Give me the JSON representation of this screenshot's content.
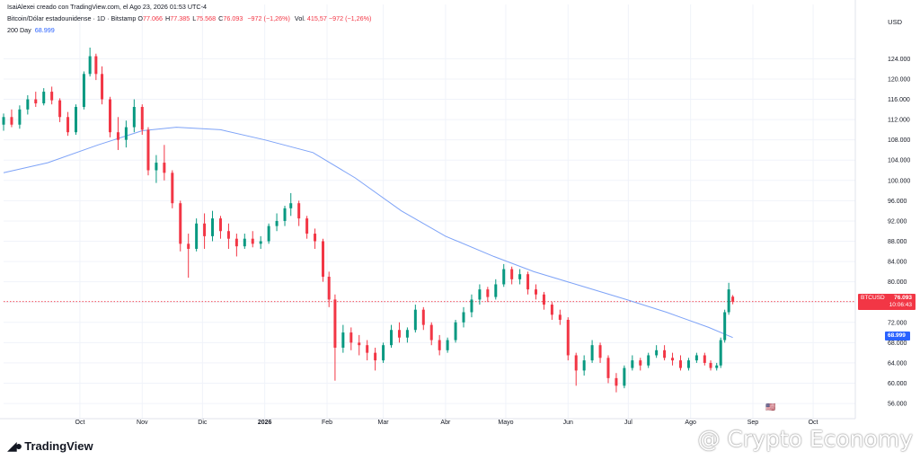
{
  "header": {
    "creator_line": "IsaiAlexei creado con TradingView.com, el Ago 23, 2026 01:53 UTC-4",
    "symbol_line": "Bitcoin/Dólar estadounidense · 1D · Bitstamp",
    "ohlc": [
      {
        "label": "O",
        "value": "77.066"
      },
      {
        "label": "H",
        "value": "77.385"
      },
      {
        "label": "L",
        "value": "75.568"
      },
      {
        "label": "C",
        "value": "76.093"
      }
    ],
    "change": "−972 (−1,26%)",
    "volume_label": "Vol.",
    "volume": "415,57 −972 (−1,26%)",
    "ma_label": "200 Day",
    "ma_value": "68.999"
  },
  "currency": "USD",
  "price_badge": {
    "symbol": "BTCUSD",
    "price": "76.093",
    "countdown": "10:06:43"
  },
  "ma_badge": "68.999",
  "branding": {
    "logo_text": "TradingView",
    "watermark": "@ Crypto Economy"
  },
  "colors": {
    "up": "#089981",
    "down": "#f23645",
    "ma": "#2962ff",
    "grid": "#f0f3fa"
  },
  "chart_data": {
    "type": "candlestick",
    "y_ticks": [
      56000,
      60000,
      64000,
      68000,
      72000,
      76000,
      80000,
      84000,
      88000,
      92000,
      96000,
      100000,
      104000,
      108000,
      112000,
      116000,
      120000,
      124000
    ],
    "y_tick_labels": [
      "56.000",
      "60.000",
      "64.000",
      "68.000",
      "72.000",
      "76.000",
      "80.000",
      "84.000",
      "88.000",
      "92.000",
      "96.000",
      "100.000",
      "104.000",
      "108.000",
      "112.000",
      "116.000",
      "120.000",
      "124.000"
    ],
    "ylim": [
      53000,
      128500
    ],
    "x_ticks": [
      {
        "label": "Oct",
        "date": "2025-10-01",
        "bold": false
      },
      {
        "label": "Nov",
        "date": "2025-11-01",
        "bold": false
      },
      {
        "label": "Dic",
        "date": "2025-12-01",
        "bold": false
      },
      {
        "label": "2026",
        "date": "2026-01-01",
        "bold": true
      },
      {
        "label": "Feb",
        "date": "2026-02-01",
        "bold": false
      },
      {
        "label": "Mar",
        "date": "2026-03-01",
        "bold": false
      },
      {
        "label": "Abr",
        "date": "2026-04-01",
        "bold": false
      },
      {
        "label": "Mayo",
        "date": "2026-05-01",
        "bold": false
      },
      {
        "label": "Jun",
        "date": "2026-06-01",
        "bold": false
      },
      {
        "label": "Jul",
        "date": "2026-07-01",
        "bold": false
      },
      {
        "label": "Ago",
        "date": "2026-08-01",
        "bold": false
      },
      {
        "label": "Sep",
        "date": "2026-09-01",
        "bold": false
      },
      {
        "label": "Oct",
        "date": "2026-10-01",
        "bold": false
      }
    ],
    "xlim": [
      "2025-08-24",
      "2026-10-22"
    ],
    "last_price": 76093,
    "ohlc_series": [
      {
        "date": "2025-08-24",
        "open": 111000,
        "high": 113200,
        "low": 109800,
        "close": 112500
      },
      {
        "date": "2025-08-28",
        "open": 112500,
        "high": 114000,
        "low": 110500,
        "close": 111000
      },
      {
        "date": "2025-09-01",
        "open": 111000,
        "high": 114800,
        "low": 110200,
        "close": 114000
      },
      {
        "date": "2025-09-05",
        "open": 114000,
        "high": 116800,
        "low": 113000,
        "close": 116000
      },
      {
        "date": "2025-09-09",
        "open": 116000,
        "high": 117500,
        "low": 114500,
        "close": 115200
      },
      {
        "date": "2025-09-13",
        "open": 115200,
        "high": 118200,
        "low": 114800,
        "close": 117500
      },
      {
        "date": "2025-09-17",
        "open": 117500,
        "high": 118500,
        "low": 115000,
        "close": 115800
      },
      {
        "date": "2025-09-21",
        "open": 115800,
        "high": 116200,
        "low": 111500,
        "close": 112500
      },
      {
        "date": "2025-09-25",
        "open": 112500,
        "high": 113500,
        "low": 108800,
        "close": 109500
      },
      {
        "date": "2025-09-29",
        "open": 109500,
        "high": 115000,
        "low": 109000,
        "close": 114500
      },
      {
        "date": "2025-10-03",
        "open": 114500,
        "high": 121500,
        "low": 114000,
        "close": 121000
      },
      {
        "date": "2025-10-06",
        "open": 121000,
        "high": 126200,
        "low": 120500,
        "close": 124500
      },
      {
        "date": "2025-10-09",
        "open": 124500,
        "high": 125000,
        "low": 119800,
        "close": 121000
      },
      {
        "date": "2025-10-12",
        "open": 121000,
        "high": 122500,
        "low": 115000,
        "close": 116000
      },
      {
        "date": "2025-10-16",
        "open": 116000,
        "high": 116500,
        "low": 108500,
        "close": 109500
      },
      {
        "date": "2025-10-20",
        "open": 109500,
        "high": 112500,
        "low": 106000,
        "close": 108000
      },
      {
        "date": "2025-10-24",
        "open": 108000,
        "high": 111800,
        "low": 106500,
        "close": 110500
      },
      {
        "date": "2025-10-28",
        "open": 110500,
        "high": 116000,
        "low": 109500,
        "close": 114500
      },
      {
        "date": "2025-11-01",
        "open": 114500,
        "high": 115000,
        "low": 109000,
        "close": 110000
      },
      {
        "date": "2025-11-04",
        "open": 110000,
        "high": 110500,
        "low": 101000,
        "close": 102000
      },
      {
        "date": "2025-11-08",
        "open": 102000,
        "high": 105000,
        "low": 99500,
        "close": 103500
      },
      {
        "date": "2025-11-12",
        "open": 103500,
        "high": 107000,
        "low": 100000,
        "close": 101500
      },
      {
        "date": "2025-11-16",
        "open": 101500,
        "high": 102000,
        "low": 94500,
        "close": 95500
      },
      {
        "date": "2025-11-20",
        "open": 95500,
        "high": 96000,
        "low": 86000,
        "close": 87500
      },
      {
        "date": "2025-11-24",
        "open": 87500,
        "high": 89500,
        "low": 80800,
        "close": 86500
      },
      {
        "date": "2025-11-28",
        "open": 86500,
        "high": 92500,
        "low": 86000,
        "close": 91500
      },
      {
        "date": "2025-12-02",
        "open": 91500,
        "high": 93500,
        "low": 86500,
        "close": 89000
      },
      {
        "date": "2025-12-06",
        "open": 89000,
        "high": 94000,
        "low": 88000,
        "close": 92500
      },
      {
        "date": "2025-12-10",
        "open": 92500,
        "high": 93000,
        "low": 88500,
        "close": 90000
      },
      {
        "date": "2025-12-14",
        "open": 90000,
        "high": 91500,
        "low": 86500,
        "close": 88500
      },
      {
        "date": "2025-12-18",
        "open": 88500,
        "high": 89500,
        "low": 85000,
        "close": 87000
      },
      {
        "date": "2025-12-22",
        "open": 87000,
        "high": 89500,
        "low": 86500,
        "close": 88500
      },
      {
        "date": "2025-12-26",
        "open": 88500,
        "high": 90000,
        "low": 86800,
        "close": 87500
      },
      {
        "date": "2025-12-30",
        "open": 87500,
        "high": 89000,
        "low": 86500,
        "close": 88000
      },
      {
        "date": "2026-01-03",
        "open": 88000,
        "high": 91500,
        "low": 87500,
        "close": 91000
      },
      {
        "date": "2026-01-07",
        "open": 91000,
        "high": 93500,
        "low": 90000,
        "close": 92000
      },
      {
        "date": "2026-01-11",
        "open": 92000,
        "high": 95000,
        "low": 91000,
        "close": 94500
      },
      {
        "date": "2026-01-14",
        "open": 94500,
        "high": 97500,
        "low": 93000,
        "close": 95500
      },
      {
        "date": "2026-01-18",
        "open": 95500,
        "high": 96000,
        "low": 91000,
        "close": 92500
      },
      {
        "date": "2026-01-22",
        "open": 92500,
        "high": 93000,
        "low": 88500,
        "close": 89500
      },
      {
        "date": "2026-01-26",
        "open": 89500,
        "high": 90500,
        "low": 86500,
        "close": 88000
      },
      {
        "date": "2026-01-30",
        "open": 88000,
        "high": 88500,
        "low": 80000,
        "close": 81000
      },
      {
        "date": "2026-02-02",
        "open": 81000,
        "high": 82000,
        "low": 75000,
        "close": 76500
      },
      {
        "date": "2026-02-05",
        "open": 76500,
        "high": 77500,
        "low": 60500,
        "close": 67000
      },
      {
        "date": "2026-02-09",
        "open": 67000,
        "high": 71500,
        "low": 66000,
        "close": 70000
      },
      {
        "date": "2026-02-13",
        "open": 70000,
        "high": 71000,
        "low": 66500,
        "close": 68000
      },
      {
        "date": "2026-02-17",
        "open": 68000,
        "high": 69500,
        "low": 65500,
        "close": 67500
      },
      {
        "date": "2026-02-21",
        "open": 67500,
        "high": 68500,
        "low": 64500,
        "close": 66000
      },
      {
        "date": "2026-02-25",
        "open": 66000,
        "high": 67000,
        "low": 62500,
        "close": 64500
      },
      {
        "date": "2026-03-01",
        "open": 64500,
        "high": 68000,
        "low": 64000,
        "close": 67500
      },
      {
        "date": "2026-03-05",
        "open": 67500,
        "high": 71500,
        "low": 67000,
        "close": 70500
      },
      {
        "date": "2026-03-09",
        "open": 70500,
        "high": 72000,
        "low": 68000,
        "close": 69000
      },
      {
        "date": "2026-03-13",
        "open": 69000,
        "high": 71000,
        "low": 68000,
        "close": 70500
      },
      {
        "date": "2026-03-17",
        "open": 70500,
        "high": 75500,
        "low": 70000,
        "close": 74500
      },
      {
        "date": "2026-03-21",
        "open": 74500,
        "high": 75000,
        "low": 70500,
        "close": 71500
      },
      {
        "date": "2026-03-25",
        "open": 71500,
        "high": 72000,
        "low": 67500,
        "close": 68500
      },
      {
        "date": "2026-03-29",
        "open": 68500,
        "high": 69500,
        "low": 65500,
        "close": 66500
      },
      {
        "date": "2026-04-02",
        "open": 66500,
        "high": 69000,
        "low": 66000,
        "close": 68500
      },
      {
        "date": "2026-04-06",
        "open": 68500,
        "high": 72500,
        "low": 68000,
        "close": 72000
      },
      {
        "date": "2026-04-10",
        "open": 72000,
        "high": 75000,
        "low": 71000,
        "close": 74000
      },
      {
        "date": "2026-04-14",
        "open": 74000,
        "high": 77500,
        "low": 73000,
        "close": 76500
      },
      {
        "date": "2026-04-18",
        "open": 76500,
        "high": 79500,
        "low": 75500,
        "close": 78500
      },
      {
        "date": "2026-04-22",
        "open": 78500,
        "high": 79000,
        "low": 76000,
        "close": 77000
      },
      {
        "date": "2026-04-26",
        "open": 77000,
        "high": 80500,
        "low": 76500,
        "close": 79500
      },
      {
        "date": "2026-04-30",
        "open": 79500,
        "high": 83500,
        "low": 79000,
        "close": 82500
      },
      {
        "date": "2026-05-04",
        "open": 82500,
        "high": 83000,
        "low": 79500,
        "close": 80500
      },
      {
        "date": "2026-05-08",
        "open": 80500,
        "high": 82500,
        "low": 79500,
        "close": 81500
      },
      {
        "date": "2026-05-12",
        "open": 81500,
        "high": 82000,
        "low": 77500,
        "close": 78500
      },
      {
        "date": "2026-05-16",
        "open": 78500,
        "high": 79500,
        "low": 76500,
        "close": 77500
      },
      {
        "date": "2026-05-20",
        "open": 77500,
        "high": 78000,
        "low": 74500,
        "close": 75500
      },
      {
        "date": "2026-05-24",
        "open": 75500,
        "high": 76000,
        "low": 72500,
        "close": 73500
      },
      {
        "date": "2026-05-28",
        "open": 73500,
        "high": 74500,
        "low": 71500,
        "close": 72500
      },
      {
        "date": "2026-06-01",
        "open": 72500,
        "high": 73000,
        "low": 64500,
        "close": 65500
      },
      {
        "date": "2026-06-05",
        "open": 65500,
        "high": 66000,
        "low": 59500,
        "close": 62500
      },
      {
        "date": "2026-06-09",
        "open": 62500,
        "high": 65500,
        "low": 61500,
        "close": 64500
      },
      {
        "date": "2026-06-13",
        "open": 64500,
        "high": 68500,
        "low": 64000,
        "close": 67500
      },
      {
        "date": "2026-06-17",
        "open": 67500,
        "high": 68000,
        "low": 64000,
        "close": 65000
      },
      {
        "date": "2026-06-21",
        "open": 65000,
        "high": 65500,
        "low": 60000,
        "close": 61000
      },
      {
        "date": "2026-06-25",
        "open": 61000,
        "high": 62000,
        "low": 58200,
        "close": 59500
      },
      {
        "date": "2026-06-29",
        "open": 59500,
        "high": 63500,
        "low": 59000,
        "close": 63000
      },
      {
        "date": "2026-07-03",
        "open": 63000,
        "high": 65500,
        "low": 62500,
        "close": 64500
      },
      {
        "date": "2026-07-07",
        "open": 64500,
        "high": 65000,
        "low": 62500,
        "close": 63500
      },
      {
        "date": "2026-07-11",
        "open": 63500,
        "high": 66000,
        "low": 63000,
        "close": 65500
      },
      {
        "date": "2026-07-15",
        "open": 65500,
        "high": 67500,
        "low": 65000,
        "close": 66500
      },
      {
        "date": "2026-07-19",
        "open": 66500,
        "high": 67500,
        "low": 64500,
        "close": 65000
      },
      {
        "date": "2026-07-23",
        "open": 65000,
        "high": 66000,
        "low": 63500,
        "close": 64500
      },
      {
        "date": "2026-07-27",
        "open": 64500,
        "high": 65500,
        "low": 62500,
        "close": 63000
      },
      {
        "date": "2026-07-31",
        "open": 63000,
        "high": 65000,
        "low": 62500,
        "close": 64500
      },
      {
        "date": "2026-08-04",
        "open": 64500,
        "high": 66000,
        "low": 64000,
        "close": 65500
      },
      {
        "date": "2026-08-08",
        "open": 65500,
        "high": 66000,
        "low": 63500,
        "close": 64000
      },
      {
        "date": "2026-08-11",
        "open": 64000,
        "high": 64500,
        "low": 62500,
        "close": 63000
      },
      {
        "date": "2026-08-14",
        "open": 63000,
        "high": 64000,
        "low": 62500,
        "close": 63500
      },
      {
        "date": "2026-08-16",
        "open": 63500,
        "high": 69000,
        "low": 63000,
        "close": 68500
      },
      {
        "date": "2026-08-18",
        "open": 68500,
        "high": 74500,
        "low": 68000,
        "close": 74000
      },
      {
        "date": "2026-08-20",
        "open": 74000,
        "high": 79800,
        "low": 73500,
        "close": 78500
      },
      {
        "date": "2026-08-22",
        "open": 77066,
        "high": 77385,
        "low": 75568,
        "close": 76093
      }
    ],
    "ma_series": {
      "name": "200 Day",
      "points": [
        {
          "date": "2025-08-24",
          "value": 101500
        },
        {
          "date": "2025-09-15",
          "value": 103500
        },
        {
          "date": "2025-10-10",
          "value": 107000
        },
        {
          "date": "2025-11-01",
          "value": 109800
        },
        {
          "date": "2025-11-18",
          "value": 110500
        },
        {
          "date": "2025-12-10",
          "value": 110000
        },
        {
          "date": "2026-01-01",
          "value": 108000
        },
        {
          "date": "2026-01-25",
          "value": 105500
        },
        {
          "date": "2026-02-15",
          "value": 100500
        },
        {
          "date": "2026-03-10",
          "value": 94000
        },
        {
          "date": "2026-04-01",
          "value": 89000
        },
        {
          "date": "2026-04-25",
          "value": 85000
        },
        {
          "date": "2026-05-15",
          "value": 82000
        },
        {
          "date": "2026-06-05",
          "value": 79500
        },
        {
          "date": "2026-06-30",
          "value": 76500
        },
        {
          "date": "2026-07-20",
          "value": 74000
        },
        {
          "date": "2026-08-10",
          "value": 71000
        },
        {
          "date": "2026-08-22",
          "value": 68999
        }
      ]
    }
  }
}
